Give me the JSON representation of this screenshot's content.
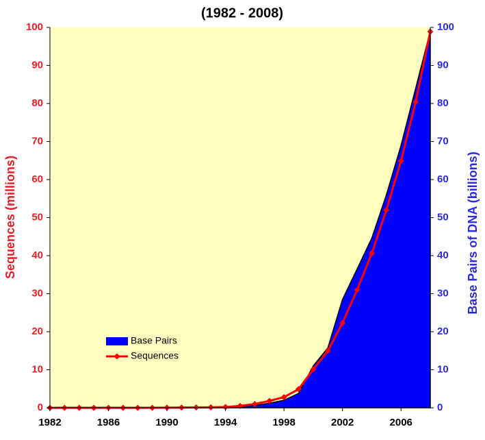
{
  "chart_data": {
    "type": "line",
    "title": "(1982 - 2008)",
    "ylabel": "Sequences (millions)",
    "y2label": "Base Pairs of DNA (billions)",
    "x": [
      1982,
      1983,
      1984,
      1985,
      1986,
      1987,
      1988,
      1989,
      1990,
      1991,
      1992,
      1993,
      1994,
      1995,
      1996,
      1997,
      1998,
      1999,
      2000,
      2001,
      2002,
      2003,
      2004,
      2005,
      2006,
      2007,
      2008
    ],
    "xlim": [
      1982,
      2008
    ],
    "xticks": [
      1982,
      1986,
      1990,
      1994,
      1998,
      2002,
      2006
    ],
    "ylim": [
      0,
      100
    ],
    "yticks": [
      0,
      10,
      20,
      30,
      40,
      50,
      60,
      70,
      80,
      90,
      100
    ],
    "y2lim": [
      0,
      100
    ],
    "y2ticks": [
      0,
      10,
      20,
      30,
      40,
      50,
      60,
      70,
      80,
      90,
      100
    ],
    "background": "#ffffc0",
    "legend": "lower left",
    "series": [
      {
        "name": "Base Pairs",
        "type": "area",
        "axis": "y2",
        "color": "#0000ff",
        "values": [
          0,
          0,
          0,
          0,
          0,
          0,
          0,
          0,
          0.05,
          0.07,
          0.1,
          0.15,
          0.2,
          0.4,
          0.65,
          1.2,
          2.0,
          3.8,
          11,
          15.8,
          28.5,
          36.5,
          44.6,
          56,
          69,
          84,
          99
        ]
      },
      {
        "name": "Sequences",
        "type": "line",
        "color": "#ff0000",
        "values": [
          0,
          0,
          0,
          0,
          0,
          0,
          0,
          0,
          0.04,
          0.06,
          0.08,
          0.14,
          0.2,
          0.5,
          1.0,
          1.8,
          2.8,
          4.9,
          10.1,
          15,
          22.3,
          31,
          40.6,
          52,
          64.9,
          80.4,
          98.9
        ]
      }
    ]
  }
}
